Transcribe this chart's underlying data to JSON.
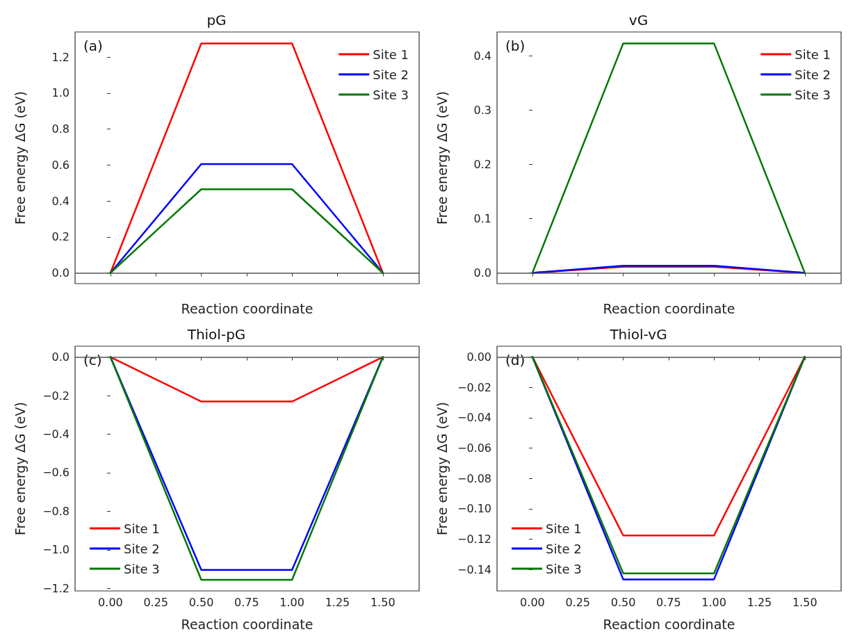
{
  "chart_data": [
    {
      "type": "line",
      "title": "pG",
      "xlabel": "Reaction coordinate",
      "ylabel": "Free energy ΔG (eV)",
      "annotations": [
        "(a)"
      ],
      "x": [
        0,
        0.5,
        1,
        1.5
      ],
      "xlim": [
        -0.195,
        1.7
      ],
      "xticks": [
        {
          "value": 0,
          "label": null
        },
        {
          "value": 0.25,
          "label": null
        },
        {
          "value": 0.5,
          "label": null
        },
        {
          "value": 0.75,
          "label": null
        },
        {
          "value": 1,
          "label": null
        },
        {
          "value": 1.25,
          "label": null
        },
        {
          "value": 1.5,
          "label": null
        }
      ],
      "ylim": [
        -0.06,
        1.34
      ],
      "yticks": [
        {
          "value": 0,
          "label": "0.0"
        },
        {
          "value": 0.2,
          "label": "0.2"
        },
        {
          "value": 0.4,
          "label": "0.4"
        },
        {
          "value": 0.6,
          "label": "0.6"
        },
        {
          "value": 0.8,
          "label": "0.8"
        },
        {
          "value": 1,
          "label": "1.0"
        },
        {
          "value": 1.2,
          "label": "1.2"
        }
      ],
      "tick_labels": "y",
      "grid": false,
      "legend": "top right",
      "marker": "none",
      "ref_lines": [
        {
          "axis": "y",
          "value": 0,
          "color": "#555555"
        }
      ],
      "series": [
        {
          "name": "Site 1",
          "color": "#ff0000",
          "values": [
            0,
            1.276,
            1.276,
            0
          ]
        },
        {
          "name": "Site 2",
          "color": "#0000ff",
          "values": [
            0,
            0.605,
            0.605,
            0
          ]
        },
        {
          "name": "Site 3",
          "color": "#007700",
          "values": [
            0,
            0.465,
            0.465,
            0
          ]
        }
      ]
    },
    {
      "type": "line",
      "title": "vG",
      "xlabel": "Reaction coordinate",
      "ylabel": "Free energy ΔG (eV)",
      "annotations": [
        "(b)"
      ],
      "x": [
        0,
        0.5,
        1,
        1.5
      ],
      "xlim": [
        -0.195,
        1.7
      ],
      "xticks": [
        {
          "value": 0,
          "label": null
        },
        {
          "value": 0.25,
          "label": null
        },
        {
          "value": 0.5,
          "label": null
        },
        {
          "value": 0.75,
          "label": null
        },
        {
          "value": 1,
          "label": null
        },
        {
          "value": 1.25,
          "label": null
        },
        {
          "value": 1.5,
          "label": null
        }
      ],
      "ylim": [
        -0.02,
        0.444
      ],
      "yticks": [
        {
          "value": 0,
          "label": "0.0"
        },
        0.1,
        0.2,
        0.3,
        0.4
      ],
      "tick_labels": "y",
      "grid": false,
      "legend": "top right",
      "marker": "none",
      "ref_lines": [
        {
          "axis": "y",
          "value": 0,
          "color": "#555555"
        }
      ],
      "series": [
        {
          "name": "Site 1",
          "color": "#ff0000",
          "values": [
            0,
            0.011,
            0.011,
            0
          ]
        },
        {
          "name": "Site 2",
          "color": "#0000ff",
          "values": [
            0,
            0.013,
            0.013,
            0
          ]
        },
        {
          "name": "Site 3",
          "color": "#007700",
          "values": [
            0,
            0.423,
            0.423,
            0
          ]
        }
      ]
    },
    {
      "type": "line",
      "title": "Thiol-pG",
      "xlabel": "Reaction coordinate",
      "ylabel": "Free energy ΔG (eV)",
      "annotations": [
        "(c)"
      ],
      "x": [
        0,
        0.5,
        1,
        1.5
      ],
      "xlim": [
        -0.195,
        1.7
      ],
      "xticks": [
        {
          "value": 0,
          "label": "0.00"
        },
        0.25,
        {
          "value": 0.5,
          "label": "0.50"
        },
        0.75,
        {
          "value": 1,
          "label": "1.00"
        },
        1.25,
        {
          "value": 1.5,
          "label": "1.50"
        }
      ],
      "ylim": [
        -1.213,
        0.056
      ],
      "yticks": [
        {
          "value": -1.2,
          "label": "−1.2"
        },
        {
          "value": -1,
          "label": "−1.0"
        },
        {
          "value": -0.8,
          "label": "−0.8"
        },
        {
          "value": -0.6,
          "label": "−0.6"
        },
        {
          "value": -0.4,
          "label": "−0.4"
        },
        {
          "value": -0.2,
          "label": "−0.2"
        },
        {
          "value": 0,
          "label": "0.0"
        }
      ],
      "grid": false,
      "legend": "bottom left",
      "marker": "none",
      "ref_lines": [
        {
          "axis": "y",
          "value": 0,
          "color": "#555555"
        }
      ],
      "series": [
        {
          "name": "Site 1",
          "color": "#ff0000",
          "values": [
            0,
            -0.231,
            -0.231,
            0
          ]
        },
        {
          "name": "Site 2",
          "color": "#0000ff",
          "values": [
            0,
            -1.104,
            -1.104,
            0
          ]
        },
        {
          "name": "Site 3",
          "color": "#007700",
          "values": [
            0,
            -1.155,
            -1.155,
            0
          ]
        }
      ]
    },
    {
      "type": "line",
      "title": "Thiol-vG",
      "xlabel": "Reaction coordinate",
      "ylabel": "Free energy ΔG (eV)",
      "annotations": [
        "(d)"
      ],
      "x": [
        0,
        0.5,
        1,
        1.5
      ],
      "xlim": [
        -0.195,
        1.7
      ],
      "xticks": [
        {
          "value": 0,
          "label": "0.00"
        },
        0.25,
        {
          "value": 0.5,
          "label": "0.50"
        },
        0.75,
        {
          "value": 1,
          "label": "1.00"
        },
        1.25,
        {
          "value": 1.5,
          "label": "1.50"
        }
      ],
      "ylim": [
        -0.154,
        0.007
      ],
      "yticks": [
        {
          "value": -0.14,
          "label": "−0.14"
        },
        {
          "value": -0.12,
          "label": "−0.12"
        },
        {
          "value": -0.1,
          "label": "−0.10"
        },
        {
          "value": -0.08,
          "label": "−0.08"
        },
        {
          "value": -0.06,
          "label": "−0.06"
        },
        {
          "value": -0.04,
          "label": "−0.04"
        },
        {
          "value": -0.02,
          "label": "−0.02"
        },
        {
          "value": 0,
          "label": "0.00"
        }
      ],
      "grid": false,
      "legend": "bottom left",
      "marker": "none",
      "ref_lines": [
        {
          "axis": "y",
          "value": 0,
          "color": "#555555"
        }
      ],
      "series": [
        {
          "name": "Site 1",
          "color": "#ff0000",
          "values": [
            0,
            -0.1175,
            -0.1175,
            0
          ]
        },
        {
          "name": "Site 2",
          "color": "#0000ff",
          "values": [
            0,
            -0.1464,
            -0.1464,
            0
          ]
        },
        {
          "name": "Site 3",
          "color": "#007700",
          "values": [
            0,
            -0.1425,
            -0.1425,
            0
          ]
        }
      ]
    }
  ]
}
